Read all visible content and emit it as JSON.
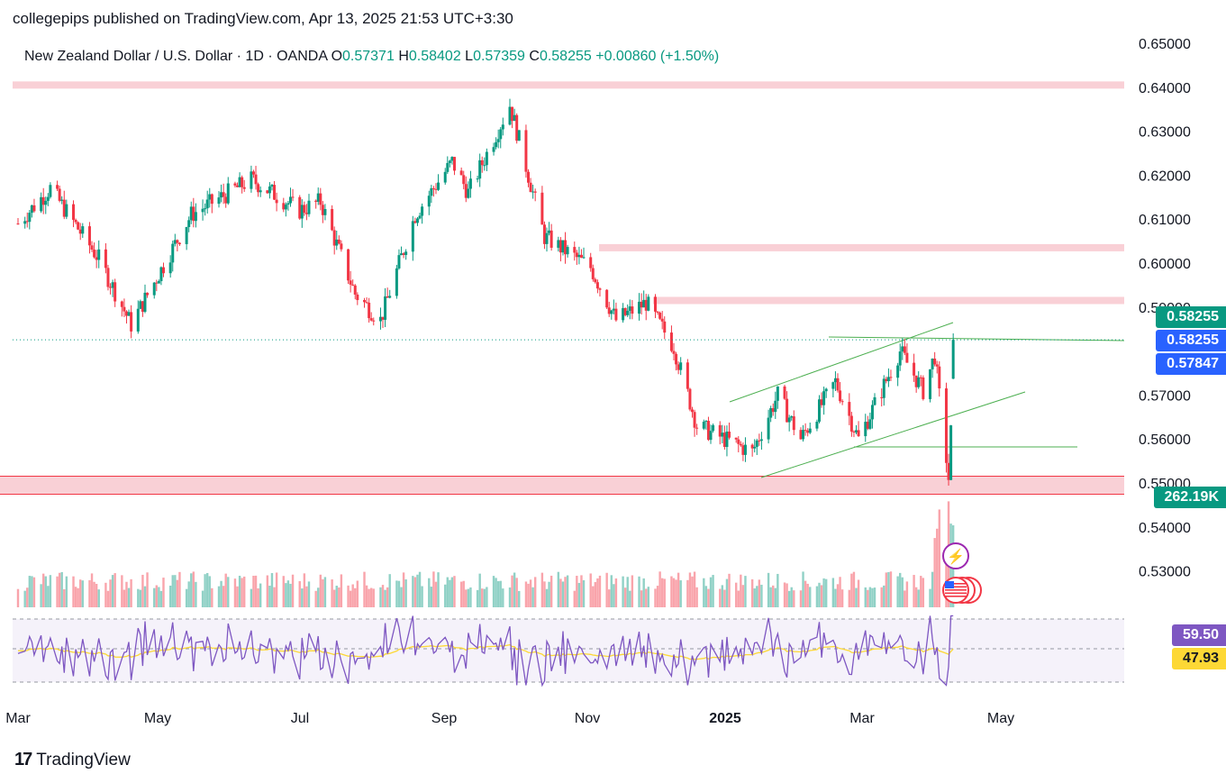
{
  "header": {
    "publisher": "collegepips published on TradingView.com, Apr 13, 2025 21:53 UTC+3:30",
    "instrument": "New Zealand Dollar / U.S. Dollar · 1D · OANDA",
    "open_label": "O",
    "open": "0.57371",
    "high_label": "H",
    "high": "0.58402",
    "low_label": "L",
    "low": "0.57359",
    "close_label": "C",
    "close": "0.58255",
    "change": "+0.00860 (+1.50%)"
  },
  "footer": {
    "brand": "TradingView"
  },
  "colors": {
    "up": "#089981",
    "down": "#f23645",
    "zone": "#f8c8cf",
    "channel": "#4caf50",
    "rsi": "#7e57c2",
    "rsi_ma": "#fdd835",
    "last": "#089981",
    "crosshair_price": "#2962ff"
  },
  "chart_data": {
    "type": "candlestick",
    "price_axis": {
      "ticks": [
        "0.65000",
        "0.64000",
        "0.63000",
        "0.62000",
        "0.61000",
        "0.60000",
        "0.59000",
        "0.57000",
        "0.56000",
        "0.55000",
        "0.54000",
        "0.53000"
      ],
      "range": [
        0.5215,
        0.652
      ]
    },
    "time_axis": {
      "ticks": [
        "Mar",
        "May",
        "Jul",
        "Sep",
        "Nov",
        "2025",
        "Mar",
        "May"
      ]
    },
    "price_labels": {
      "last_price": "0.58255",
      "close_line": "0.58255",
      "crosshair": "0.57847",
      "volume": "262.19K"
    },
    "rsi": {
      "value": "59.50",
      "ma": "47.93"
    },
    "resistance_zones": [
      0.6405,
      0.6035,
      0.5915,
      0.5495
    ],
    "path": [
      [
        "2024-03-01",
        0.609
      ],
      [
        "2024-03-15",
        0.617
      ],
      [
        "2024-04-05",
        0.601
      ],
      [
        "2024-04-19",
        0.586
      ],
      [
        "2024-05-15",
        0.611
      ],
      [
        "2024-06-10",
        0.619
      ],
      [
        "2024-07-01",
        0.612
      ],
      [
        "2024-07-10",
        0.614
      ],
      [
        "2024-07-25",
        0.593
      ],
      [
        "2024-08-05",
        0.587
      ],
      [
        "2024-08-20",
        0.611
      ],
      [
        "2024-09-05",
        0.623
      ],
      [
        "2024-09-12",
        0.616
      ],
      [
        "2024-09-30",
        0.636
      ],
      [
        "2024-10-15",
        0.606
      ],
      [
        "2024-11-04",
        0.599
      ],
      [
        "2024-11-15",
        0.587
      ],
      [
        "2024-11-28",
        0.591
      ],
      [
        "2024-12-10",
        0.581
      ],
      [
        "2024-12-20",
        0.563
      ],
      [
        "2025-01-13",
        0.557
      ],
      [
        "2025-01-24",
        0.57
      ],
      [
        "2025-02-03",
        0.56
      ],
      [
        "2025-02-18",
        0.573
      ],
      [
        "2025-02-28",
        0.56
      ],
      [
        "2025-03-18",
        0.58
      ],
      [
        "2025-03-28",
        0.571
      ],
      [
        "2025-04-02",
        0.579
      ],
      [
        "2025-04-08",
        0.551
      ],
      [
        "2025-04-11",
        0.5826
      ]
    ]
  }
}
